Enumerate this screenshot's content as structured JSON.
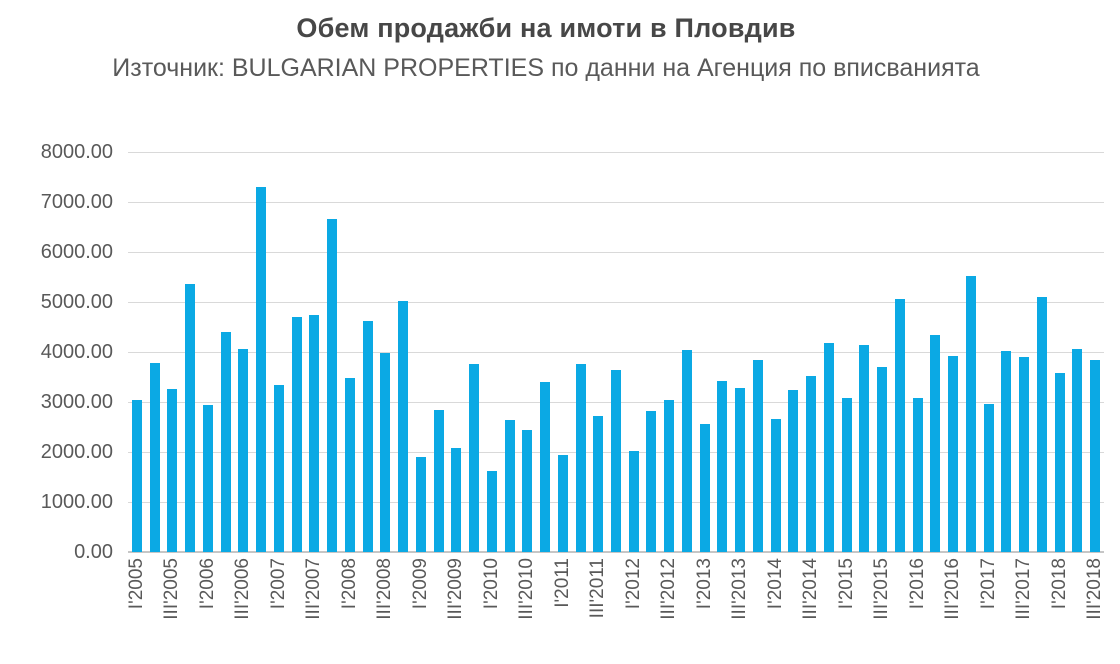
{
  "header": {
    "title": "Обем продажби на имоти в Пловдив",
    "subtitle": "Източник: BULGARIAN PROPERTIES по данни на Агенция по вписванията"
  },
  "chart_data": {
    "type": "bar",
    "title": "Обем продажби на имоти в Пловдив",
    "subtitle": "Източник: BULGARIAN PROPERTIES по данни на Агенция по вписванията",
    "categories": [
      "I'2005",
      "II'2005",
      "III'2005",
      "IV'2005",
      "I'2006",
      "II'2006",
      "III'2006",
      "IV'2006",
      "I'2007",
      "II'2007",
      "III'2007",
      "IV'2007",
      "I'2008",
      "II'2008",
      "III'2008",
      "IV'2008",
      "I'2009",
      "II'2009",
      "III'2009",
      "IV'2009",
      "I'2010",
      "II'2010",
      "III'2010",
      "IV'2010",
      "I'2011",
      "II'2011",
      "III'2011",
      "IV'2011",
      "I'2012",
      "II'2012",
      "III'2012",
      "IV'2012",
      "I'2013",
      "II'2013",
      "III'2013",
      "IV'2013",
      "I'2014",
      "II'2014",
      "III'2014",
      "IV'2014",
      "I'2015",
      "II'2015",
      "III'2015",
      "IV'2015",
      "I'2016",
      "II'2016",
      "III'2016",
      "IV'2016",
      "I'2017",
      "II'2017",
      "III'2017",
      "IV'2017",
      "I'2018",
      "II'2018",
      "III'2018"
    ],
    "values": [
      3040,
      3780,
      3270,
      5360,
      2940,
      4400,
      4070,
      7310,
      3350,
      4700,
      4750,
      6670,
      3480,
      4620,
      3990,
      5030,
      1910,
      2850,
      2090,
      3770,
      1620,
      2650,
      2450,
      3400,
      1950,
      3770,
      2730,
      3650,
      2020,
      2830,
      3040,
      4040,
      2560,
      3420,
      3290,
      3850,
      2670,
      3250,
      3520,
      4180,
      3090,
      4140,
      3700,
      5070,
      3090,
      4350,
      3930,
      5520,
      2970,
      4020,
      3910,
      5100,
      3580,
      4060,
      3840
    ],
    "x_tick_labels_shown": [
      "I'2005",
      "III'2005",
      "I'2006",
      "III'2006",
      "I'2007",
      "III'2007",
      "I'2008",
      "III'2008",
      "I'2009",
      "III'2009",
      "I'2010",
      "III'2010",
      "I'2011",
      "III'2011",
      "I'2012",
      "III'2012",
      "I'2013",
      "III'2013",
      "I'2014",
      "III'2014",
      "I'2015",
      "III'2015",
      "I'2016",
      "III'2016",
      "I'2017",
      "III'2017",
      "I'2018",
      "III'2018"
    ],
    "y_tick_labels": [
      "0.00",
      "1000.00",
      "2000.00",
      "3000.00",
      "4000.00",
      "5000.00",
      "6000.00",
      "7000.00",
      "8000.00"
    ],
    "ylim": [
      0,
      8000
    ],
    "y_step": 1000,
    "xlabel": "",
    "ylabel": "",
    "grid": true,
    "legend": "none",
    "bar_color": "#0ba9e4",
    "gridline_color": "#d9d9d9",
    "axis_line_color": "#c6c6c6",
    "text_color": "#595959",
    "title_color": "#474747"
  }
}
